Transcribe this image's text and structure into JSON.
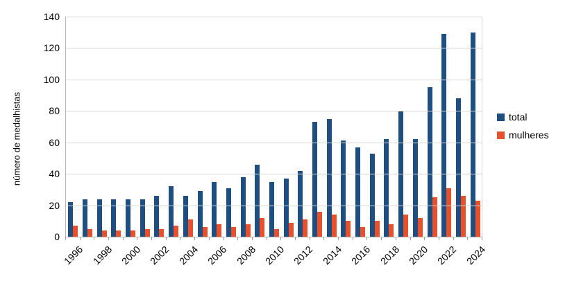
{
  "figure": {
    "y_axis_title": "número de medalhistas"
  },
  "legend": {
    "items": [
      {
        "label": "total",
        "color": "#1F4E80"
      },
      {
        "label": "mulheres",
        "color": "#E8502B"
      }
    ]
  },
  "chart_data": {
    "type": "bar",
    "title": "",
    "xlabel": "",
    "ylabel": "número de medalhistas",
    "ylim": [
      0,
      140
    ],
    "ytick_step": 20,
    "grid": true,
    "legend_position": "right",
    "categories": [
      1996,
      1997,
      1998,
      1999,
      2000,
      2001,
      2002,
      2003,
      2004,
      2005,
      2006,
      2007,
      2008,
      2009,
      2010,
      2011,
      2012,
      2013,
      2014,
      2015,
      2016,
      2017,
      2018,
      2019,
      2020,
      2021,
      2022,
      2023,
      2024
    ],
    "xtick_labels_shown": [
      "1996",
      "1998",
      "2000",
      "2002",
      "2004",
      "2006",
      "2008",
      "2010",
      "2012",
      "2014",
      "2016",
      "2018",
      "2020",
      "2022",
      "2024"
    ],
    "series": [
      {
        "name": "total",
        "color": "#1F4E80",
        "values": [
          22,
          24,
          24,
          24,
          24,
          24,
          26,
          32,
          26,
          29,
          35,
          31,
          38,
          46,
          35,
          37,
          42,
          73,
          75,
          61,
          57,
          53,
          62,
          80,
          62,
          95,
          129,
          88,
          130
        ]
      },
      {
        "name": "mulheres",
        "color": "#E8502B",
        "values": [
          7,
          5,
          4,
          4,
          4,
          5,
          5,
          7,
          11,
          6,
          8,
          6,
          8,
          12,
          5,
          9,
          11,
          16,
          14,
          10,
          6,
          10,
          8,
          14,
          12,
          25,
          31,
          26,
          23
        ]
      }
    ]
  }
}
